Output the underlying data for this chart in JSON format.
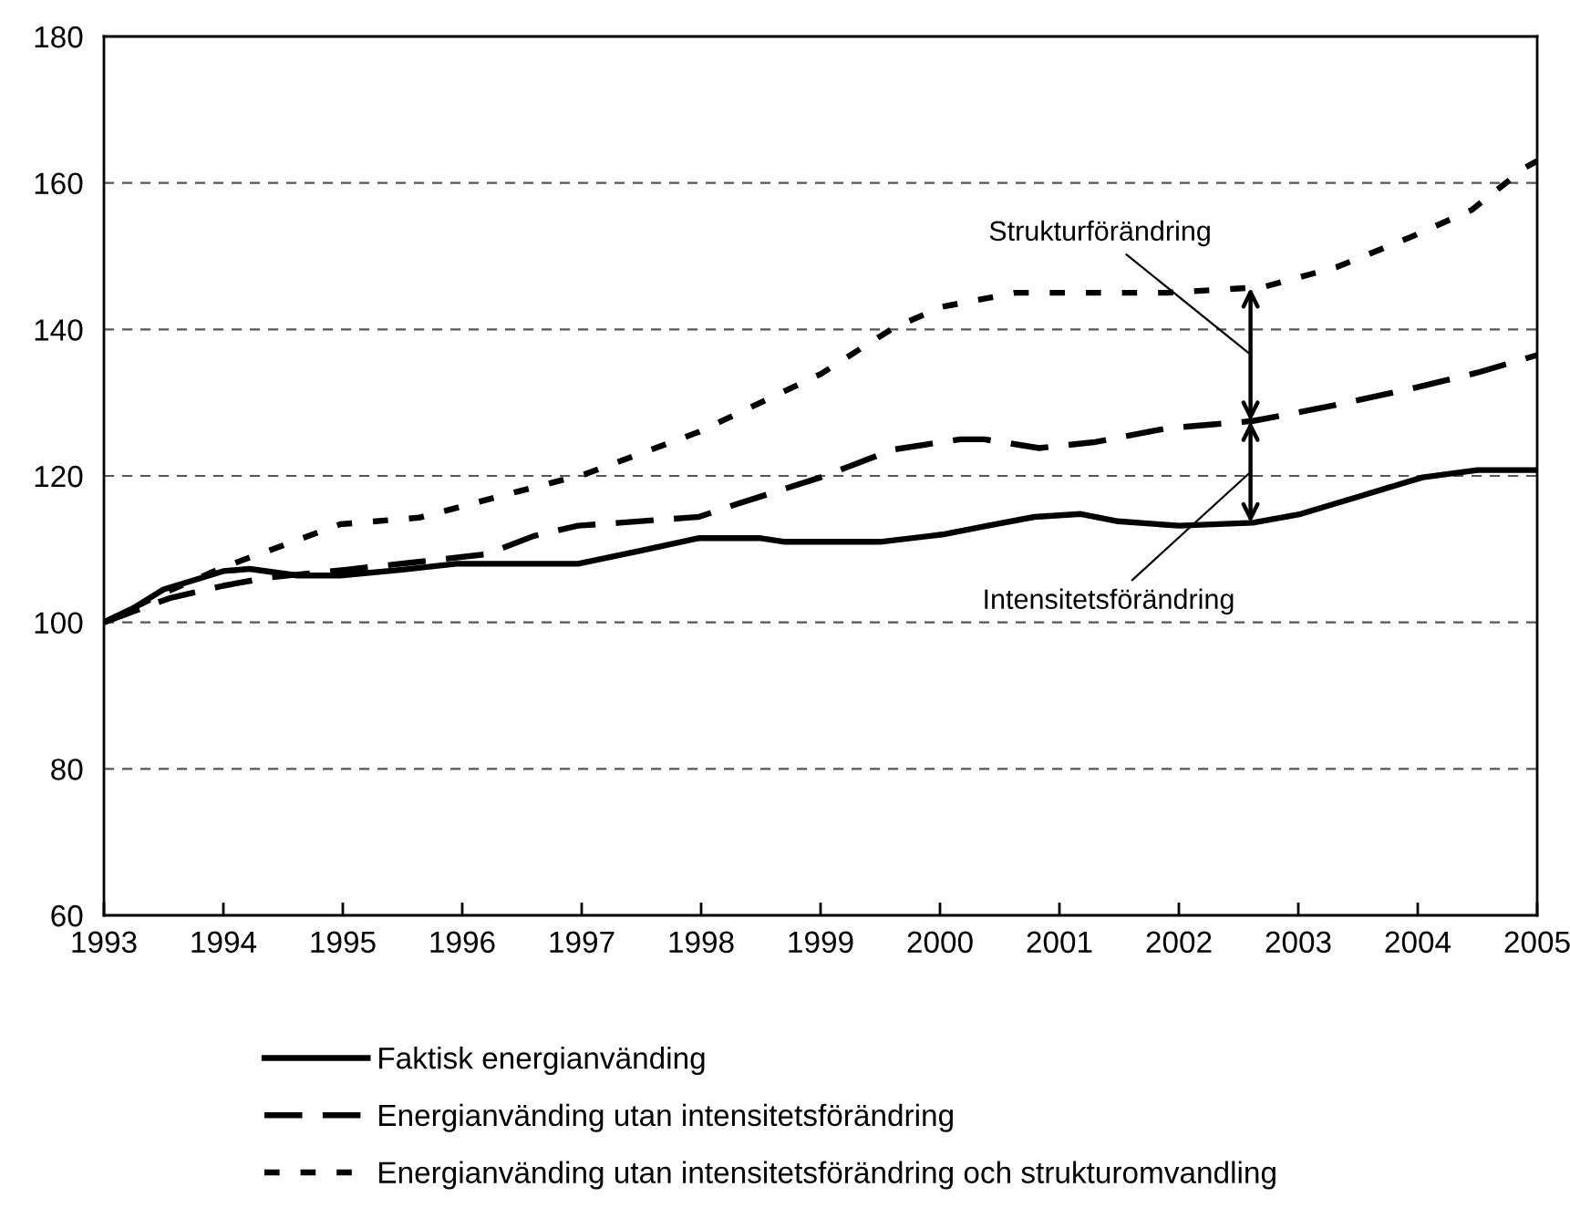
{
  "chart_data": {
    "type": "line",
    "xlim": [
      1993,
      2005
    ],
    "xticks": [
      1993,
      1994,
      1995,
      1996,
      1997,
      1998,
      1999,
      2000,
      2001,
      2002,
      2003,
      2004,
      2005
    ],
    "ylim": [
      60,
      180
    ],
    "yticks": [
      60,
      80,
      100,
      120,
      140,
      160,
      180
    ],
    "grid": "y",
    "legend": "bottom",
    "marker": "none",
    "series": [
      {
        "name": "Faktisk energianvänding",
        "color": "#000000",
        "line_style": "solid",
        "x": [
          1993,
          1993.25,
          1993.5,
          1994,
          1994.22,
          1994.62,
          1994.98,
          1995.5,
          1995.95,
          1996.5,
          1996.97,
          1997.5,
          1997.98,
          1998.5,
          1998.7,
          1999.0,
          1999.5,
          2000.02,
          2000.4,
          2000.79,
          2001.18,
          2001.49,
          2002.0,
          2002.62,
          2003.02,
          2003.53,
          2004.04,
          2004.5,
          2005
        ],
        "values": [
          100,
          102,
          104.5,
          107,
          107.3,
          106.4,
          106.4,
          107.2,
          108,
          108,
          108,
          109.8,
          111.5,
          111.5,
          111,
          111,
          111,
          112,
          113.2,
          114.4,
          114.8,
          113.8,
          113.2,
          113.6,
          114.8,
          117.3,
          119.8,
          120.8,
          120.8
        ]
      },
      {
        "name": "Energianvänding utan intensitetsförändring",
        "color": "#000000",
        "line_style": "dashed",
        "x": [
          1993,
          1993.25,
          1993.55,
          1994,
          1994.37,
          1995.03,
          1995.6,
          1996.2,
          1996.6,
          1996.97,
          1997.32,
          1997.98,
          1998.29,
          1999.0,
          1999.61,
          2000.17,
          2000.37,
          2000.83,
          2001.29,
          2001.9,
          2002.62,
          2003.23,
          2003.94,
          2004.5,
          2005
        ],
        "values": [
          100,
          101.5,
          103.3,
          105,
          106.1,
          107.2,
          108.2,
          109.3,
          111.8,
          113.2,
          113.6,
          114.4,
          116.1,
          119.8,
          123.6,
          125,
          125,
          123.8,
          124.6,
          126.5,
          127.5,
          129.4,
          131.9,
          134.1,
          136.5
        ]
      },
      {
        "name": "Energianvänding utan intensitetsförändring och strukturomvandling",
        "color": "#000000",
        "line_style": "dotted",
        "x": [
          1993,
          1993.5,
          1994.01,
          1994.5,
          1994.98,
          1995.64,
          1996.45,
          1997.02,
          1997.98,
          1999.0,
          1999.61,
          2000.02,
          2000.63,
          2001.9,
          2002.71,
          2003.32,
          2003.94,
          2004.45,
          2004.9,
          2005
        ],
        "values": [
          100,
          104,
          107.6,
          110.5,
          113.4,
          114.3,
          117.8,
          120.2,
          126,
          133.9,
          140.2,
          143.1,
          145,
          145,
          145.8,
          148.5,
          152.6,
          156.3,
          162.1,
          163
        ]
      }
    ],
    "annotations": [
      "Strukturförändring",
      "Intensitetsförändring"
    ]
  }
}
